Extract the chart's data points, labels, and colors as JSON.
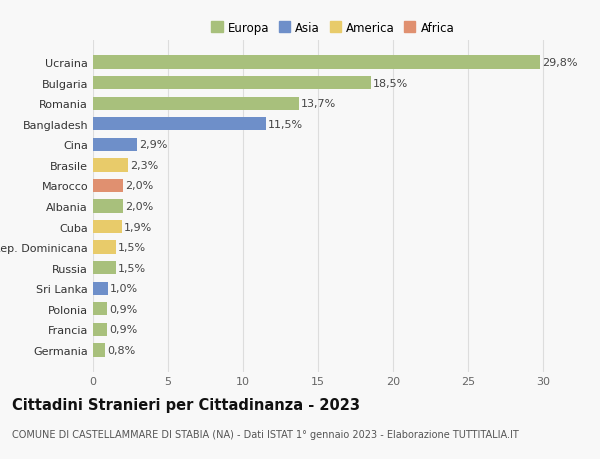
{
  "countries": [
    "Germania",
    "Francia",
    "Polonia",
    "Sri Lanka",
    "Russia",
    "Rep. Dominicana",
    "Cuba",
    "Albania",
    "Marocco",
    "Brasile",
    "Cina",
    "Bangladesh",
    "Romania",
    "Bulgaria",
    "Ucraina"
  ],
  "values": [
    0.8,
    0.9,
    0.9,
    1.0,
    1.5,
    1.5,
    1.9,
    2.0,
    2.0,
    2.3,
    2.9,
    11.5,
    13.7,
    18.5,
    29.8
  ],
  "labels": [
    "0,8%",
    "0,9%",
    "0,9%",
    "1,0%",
    "1,5%",
    "1,5%",
    "1,9%",
    "2,0%",
    "2,0%",
    "2,3%",
    "2,9%",
    "11,5%",
    "13,7%",
    "18,5%",
    "29,8%"
  ],
  "continents": [
    "Europa",
    "Europa",
    "Europa",
    "Asia",
    "Europa",
    "America",
    "America",
    "Europa",
    "Africa",
    "America",
    "Asia",
    "Asia",
    "Europa",
    "Europa",
    "Europa"
  ],
  "continent_colors": {
    "Europa": "#a8c07c",
    "Asia": "#6e8fc9",
    "America": "#e8cb6a",
    "Africa": "#e09070"
  },
  "legend_order": [
    "Europa",
    "Asia",
    "America",
    "Africa"
  ],
  "legend_colors": [
    "#a8c07c",
    "#6e8fc9",
    "#e8cb6a",
    "#e09070"
  ],
  "title": "Cittadini Stranieri per Cittadinanza - 2023",
  "subtitle": "COMUNE DI CASTELLAMMARE DI STABIA (NA) - Dati ISTAT 1° gennaio 2023 - Elaborazione TUTTITALIA.IT",
  "xlim": [
    0,
    32
  ],
  "xticks": [
    0,
    5,
    10,
    15,
    20,
    25,
    30
  ],
  "background_color": "#f8f8f8",
  "bar_height": 0.65,
  "label_fontsize": 8,
  "title_fontsize": 10.5,
  "subtitle_fontsize": 7,
  "ytick_fontsize": 8,
  "xtick_fontsize": 8,
  "grid_color": "#dddddd",
  "legend_fontsize": 8.5
}
